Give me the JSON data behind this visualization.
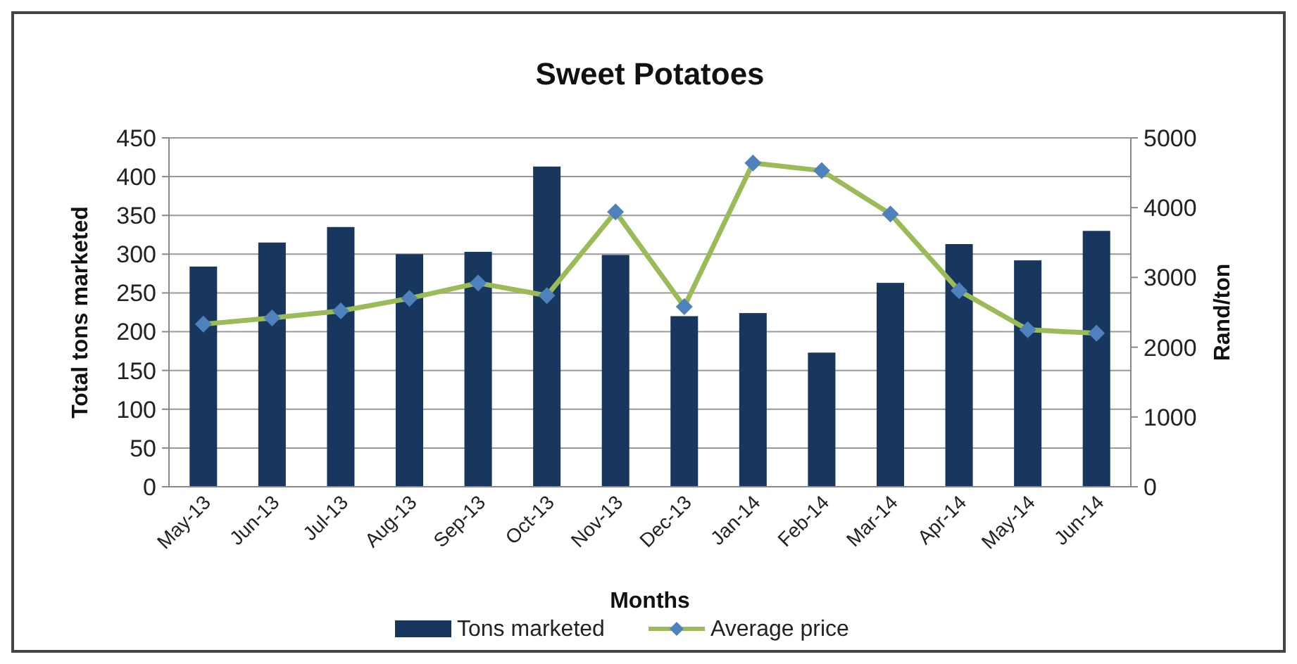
{
  "chart_data": {
    "type": "bar",
    "title": "Sweet Potatoes",
    "xlabel": "Months",
    "ylabel": "Total  tons marketed",
    "y2label": "Rand/ton",
    "categories": [
      "May-13",
      "Jun-13",
      "Jul-13",
      "Aug-13",
      "Sep-13",
      "Oct-13",
      "Nov-13",
      "Dec-13",
      "Jan-14",
      "Feb-14",
      "Mar-14",
      "Apr-14",
      "May-14",
      "Jun-14"
    ],
    "series": [
      {
        "name": "Tons marketed",
        "color": "#17375e",
        "values": [
          284,
          315,
          335,
          300,
          303,
          413,
          299,
          220,
          224,
          173,
          263,
          313,
          292,
          330
        ]
      },
      {
        "name": "Average price",
        "type": "line",
        "axis": "y2",
        "color": "#9bbb59",
        "marker": "diamond",
        "values": [
          2330,
          2420,
          2520,
          2700,
          2920,
          2740,
          3940,
          2580,
          4640,
          4530,
          3910,
          2810,
          2250,
          2200
        ]
      }
    ],
    "ylim": [
      0,
      450
    ],
    "yticks": [
      0,
      50,
      100,
      150,
      200,
      250,
      300,
      350,
      400,
      450
    ],
    "y2lim": [
      0,
      5000
    ],
    "y2ticks": [
      0,
      1000,
      2000,
      3000,
      4000,
      5000
    ],
    "grid": "y",
    "legend": "bottom"
  }
}
